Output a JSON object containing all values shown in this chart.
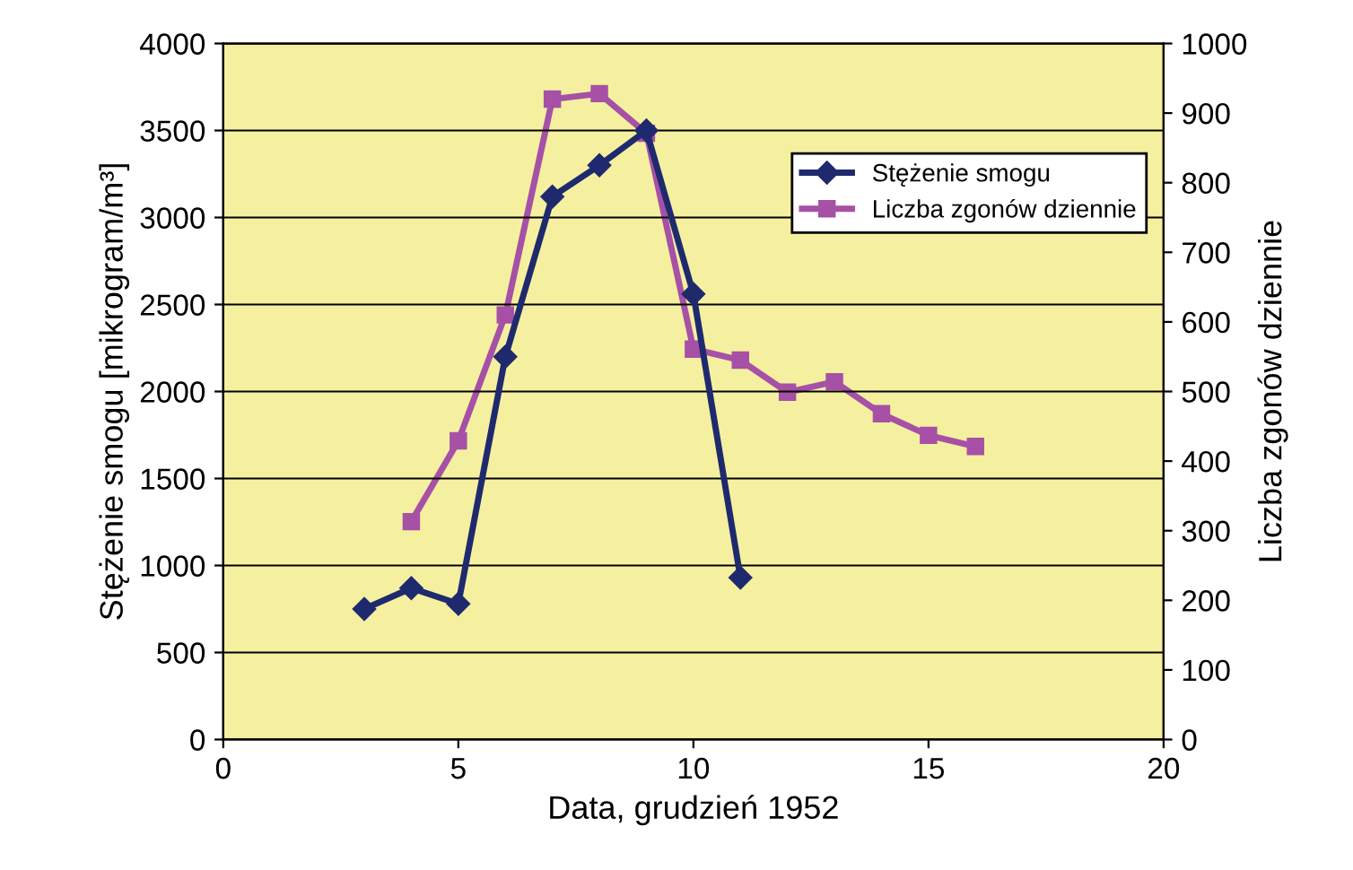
{
  "chart_data": {
    "type": "line",
    "xlabel": "Data, grudzień 1952",
    "ylabel": "Stężenie smogu [mikrogram/m³]",
    "y2label": "Liczba zgonów dziennie",
    "xlim": [
      0,
      20
    ],
    "xticks": [
      0,
      5,
      10,
      15,
      20
    ],
    "ylim": [
      0,
      4000
    ],
    "yticks": [
      0,
      500,
      1000,
      1500,
      2000,
      2500,
      3000,
      3500,
      4000
    ],
    "y2lim": [
      0,
      1000
    ],
    "y2ticks": [
      0,
      100,
      200,
      300,
      400,
      500,
      600,
      700,
      800,
      900,
      1000
    ],
    "grid": "y",
    "legend": "top right",
    "series": [
      {
        "name": "Stężenie smogu",
        "color": "#1f2a6e",
        "marker": "diamond",
        "x": [
          3,
          4,
          5,
          6,
          7,
          8,
          9,
          10,
          11
        ],
        "values": [
          750,
          870,
          780,
          2200,
          3120,
          3300,
          3500,
          2560,
          930
        ]
      },
      {
        "name": "Liczba zgonów dziennie",
        "color": "#a650a6",
        "marker": "square",
        "axis": "y2",
        "x": [
          4,
          5,
          6,
          7,
          8,
          9,
          10,
          11,
          12,
          13,
          14,
          15,
          16
        ],
        "values": [
          313,
          429,
          610,
          920,
          928,
          871,
          561,
          545,
          499,
          514,
          468,
          437,
          421
        ]
      }
    ]
  }
}
